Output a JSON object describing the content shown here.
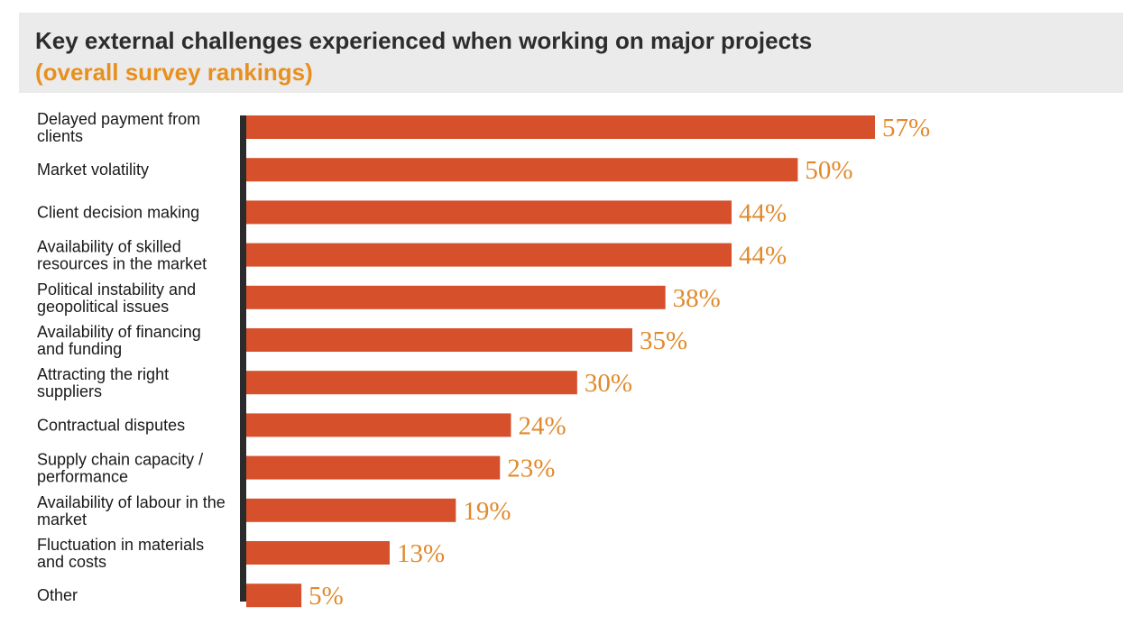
{
  "header": {
    "title": "Key external challenges experienced when working on major projects",
    "subtitle": "(overall survey rankings)"
  },
  "colors": {
    "bar": "#d5502b",
    "value_label": "#e08a2c",
    "axis": "#2b2b2b",
    "header_bg": "#ebebeb",
    "subtitle": "#e8901f"
  },
  "chart_data": {
    "type": "bar",
    "orientation": "horizontal",
    "title": "Key external challenges experienced when working on major projects",
    "subtitle": "(overall survey rankings)",
    "categories": [
      [
        "Delayed payment from",
        "clients"
      ],
      [
        "Market volatility"
      ],
      [
        "Client decision making"
      ],
      [
        "Availability of skilled",
        "resources in the market"
      ],
      [
        "Political instability and",
        "geopolitical issues"
      ],
      [
        "Availability of financing",
        "and funding"
      ],
      [
        "Attracting the right",
        "suppliers"
      ],
      [
        "Contractual disputes"
      ],
      [
        "Supply chain capacity /",
        "performance"
      ],
      [
        "Availability of labour in the",
        "market"
      ],
      [
        "Fluctuation in materials",
        "and costs"
      ],
      [
        "Other"
      ]
    ],
    "values": [
      57,
      50,
      44,
      44,
      38,
      35,
      30,
      24,
      23,
      19,
      13,
      5
    ],
    "value_labels": [
      "57%",
      "50%",
      "44%",
      "44%",
      "38%",
      "35%",
      "30%",
      "24%",
      "23%",
      "19%",
      "13%",
      "5%"
    ],
    "unit": "%",
    "xlim": [
      0,
      57
    ],
    "xlabel": "",
    "ylabel": "",
    "grid": false,
    "legend": "none"
  }
}
